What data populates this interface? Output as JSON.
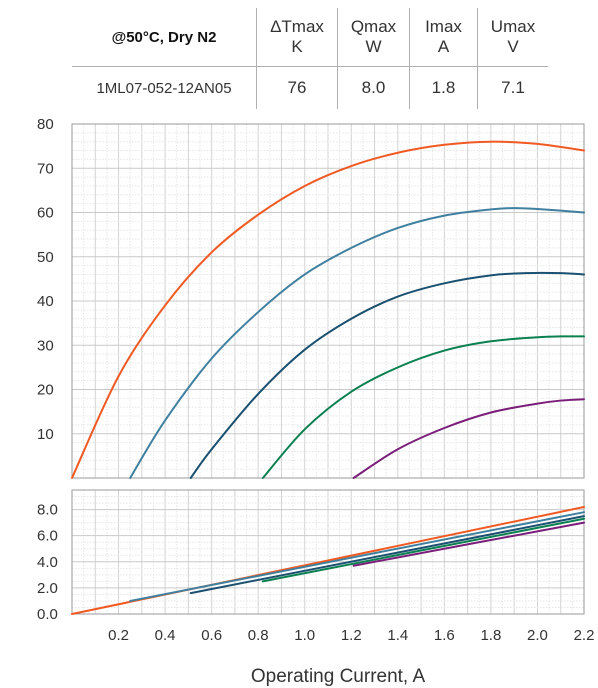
{
  "spec_table": {
    "condition": "@50°C, Dry N2",
    "columns": [
      {
        "name": "ΔTmax",
        "unit": "K"
      },
      {
        "name": "Qmax",
        "unit": "W"
      },
      {
        "name": "Imax",
        "unit": "A"
      },
      {
        "name": "Umax",
        "unit": "V"
      }
    ],
    "rows": [
      {
        "model": "1ML07-052-12AN05",
        "values": [
          "76",
          "8.0",
          "1.8",
          "7.1"
        ]
      }
    ]
  },
  "chart_data": [
    {
      "type": "line",
      "panel": "top",
      "xlim": [
        0,
        2.2
      ],
      "ylim": [
        0,
        80
      ],
      "yticks": [
        "10",
        "20",
        "30",
        "40",
        "50",
        "60",
        "70",
        "80"
      ],
      "grid": true,
      "series": [
        {
          "color": "#f05a22",
          "x": [
            0,
            0.2,
            0.4,
            0.6,
            0.8,
            1.0,
            1.2,
            1.4,
            1.6,
            1.8,
            2.0,
            2.2
          ],
          "y": [
            0,
            23,
            39,
            51,
            59.5,
            66,
            70.5,
            73.5,
            75.3,
            76,
            75.5,
            74
          ]
        },
        {
          "color": "#3f80a0",
          "x": [
            0.25,
            0.4,
            0.6,
            0.8,
            1.0,
            1.2,
            1.4,
            1.6,
            1.8,
            1.9,
            2.0,
            2.2
          ],
          "y": [
            0,
            13,
            27,
            37.5,
            46,
            52,
            56.5,
            59.3,
            60.7,
            61,
            60.8,
            60
          ]
        },
        {
          "color": "#1a5070",
          "x": [
            0.51,
            0.6,
            0.8,
            1.0,
            1.2,
            1.4,
            1.6,
            1.8,
            1.95,
            2.1,
            2.2
          ],
          "y": [
            0,
            6.5,
            19,
            29,
            36,
            41,
            44,
            45.8,
            46.3,
            46.3,
            46
          ]
        },
        {
          "color": "#0b8050",
          "x": [
            0.82,
            1.0,
            1.2,
            1.4,
            1.6,
            1.8,
            2.0,
            2.1,
            2.2
          ],
          "y": [
            0,
            11,
            19.5,
            25,
            28.8,
            30.9,
            31.8,
            32,
            32
          ]
        },
        {
          "color": "#7a1e7a",
          "x": [
            1.21,
            1.4,
            1.6,
            1.8,
            2.0,
            2.1,
            2.2
          ],
          "y": [
            0,
            6.5,
            11.3,
            14.8,
            16.8,
            17.5,
            17.8
          ]
        }
      ]
    },
    {
      "type": "line",
      "panel": "bottom",
      "xlabel": "Operating Current, A",
      "xlim": [
        0,
        2.2
      ],
      "ylim": [
        0,
        9.5
      ],
      "xticks": [
        "0.2",
        "0.4",
        "0.6",
        "0.8",
        "1.0",
        "1.2",
        "1.4",
        "1.6",
        "1.8",
        "2.0",
        "2.2"
      ],
      "yticks": [
        "0.0",
        "2.0",
        "4.0",
        "6.0",
        "8.0"
      ],
      "grid": true,
      "series": [
        {
          "color": "#f05a22",
          "x": [
            0,
            2.2
          ],
          "y": [
            0,
            8.2
          ]
        },
        {
          "color": "#3f80a0",
          "x": [
            0.25,
            2.2
          ],
          "y": [
            1.0,
            7.8
          ]
        },
        {
          "color": "#1a5070",
          "x": [
            0.51,
            2.2
          ],
          "y": [
            1.6,
            7.5
          ]
        },
        {
          "color": "#0b8050",
          "x": [
            0.82,
            2.2
          ],
          "y": [
            2.5,
            7.3
          ]
        },
        {
          "color": "#7a1e7a",
          "x": [
            1.21,
            2.2
          ],
          "y": [
            3.7,
            7.0
          ]
        }
      ]
    }
  ]
}
